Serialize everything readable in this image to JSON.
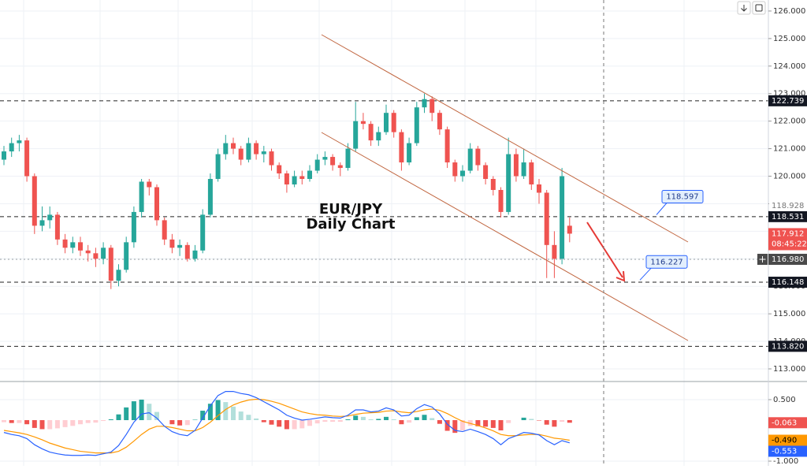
{
  "chart_data": [
    {
      "type": "candlestick",
      "title": "EUR/JPY",
      "subtitle": "Daily Chart",
      "open": [
        120.6,
        120.9,
        121.2,
        121.3,
        120.0,
        118.2,
        118.4,
        118.6,
        117.7,
        117.4,
        117.6,
        117.3,
        117.2,
        117.0,
        117.4,
        116.2,
        116.6,
        117.6,
        118.7,
        119.8,
        119.6,
        118.4,
        117.7,
        117.4,
        117.5,
        117.0,
        117.3,
        118.6,
        119.9,
        120.8,
        121.2,
        121.0,
        120.6,
        121.2,
        120.8,
        120.9,
        120.4,
        120.1,
        119.7,
        120.0,
        119.9,
        120.2,
        120.6,
        120.7,
        120.4,
        120.3,
        121.0,
        122.0,
        121.9,
        121.3,
        121.6,
        122.3,
        121.6,
        120.5,
        121.2,
        122.5,
        122.8,
        122.3,
        121.7,
        120.5,
        120.0,
        120.2,
        121.0,
        120.4,
        119.9,
        119.5,
        118.7,
        120.8,
        120.0,
        120.5,
        119.7,
        119.4,
        117.5,
        117.0,
        118.2
      ],
      "high": [
        121.1,
        121.4,
        121.5,
        121.4,
        120.1,
        118.9,
        118.9,
        118.7,
        117.9,
        117.8,
        117.8,
        117.5,
        117.4,
        117.6,
        117.5,
        116.8,
        117.8,
        118.9,
        119.9,
        119.9,
        119.7,
        118.5,
        117.9,
        117.7,
        117.6,
        117.5,
        118.8,
        120.1,
        121.0,
        121.5,
        121.4,
        121.1,
        121.4,
        121.3,
        121.1,
        121.0,
        120.5,
        120.2,
        120.2,
        120.2,
        120.4,
        120.8,
        120.9,
        120.8,
        120.5,
        121.2,
        122.7,
        122.3,
        122.0,
        121.8,
        122.6,
        122.4,
        121.7,
        121.4,
        122.7,
        123.0,
        122.9,
        122.4,
        121.8,
        120.6,
        120.4,
        121.2,
        121.1,
        120.5,
        120.0,
        119.6,
        121.4,
        121.0,
        121.0,
        120.6,
        119.9,
        119.5,
        118.0,
        120.3,
        118.5
      ],
      "low": [
        120.4,
        120.7,
        120.9,
        119.8,
        117.9,
        118.0,
        118.1,
        117.5,
        117.2,
        117.2,
        117.1,
        116.9,
        116.7,
        116.8,
        115.9,
        116.0,
        116.5,
        117.4,
        118.5,
        119.3,
        118.2,
        117.5,
        117.2,
        117.1,
        116.9,
        116.9,
        117.2,
        118.5,
        119.8,
        120.6,
        120.8,
        120.4,
        120.5,
        120.6,
        120.5,
        120.2,
        119.9,
        119.4,
        119.6,
        119.7,
        119.8,
        120.1,
        120.4,
        120.2,
        120.0,
        120.2,
        120.9,
        121.7,
        121.1,
        121.1,
        121.5,
        121.4,
        120.2,
        120.4,
        121.1,
        122.3,
        122.0,
        121.5,
        120.3,
        119.8,
        119.8,
        120.1,
        120.2,
        119.7,
        119.3,
        118.5,
        118.6,
        119.8,
        119.9,
        119.5,
        119.0,
        116.3,
        116.3,
        116.8,
        117.6
      ],
      "close": [
        120.9,
        121.2,
        121.3,
        120.0,
        118.2,
        118.4,
        118.6,
        117.7,
        117.4,
        117.6,
        117.3,
        117.2,
        117.0,
        117.4,
        116.2,
        116.6,
        117.6,
        118.7,
        119.8,
        119.6,
        118.4,
        117.7,
        117.4,
        117.5,
        117.0,
        117.3,
        118.6,
        119.9,
        120.8,
        121.2,
        121.0,
        120.6,
        121.2,
        120.8,
        120.9,
        120.4,
        120.1,
        119.7,
        120.0,
        119.9,
        120.2,
        120.6,
        120.7,
        120.4,
        120.3,
        121.0,
        122.0,
        121.9,
        121.3,
        121.6,
        122.3,
        121.6,
        120.5,
        121.2,
        122.5,
        122.8,
        122.3,
        121.7,
        120.5,
        120.0,
        120.2,
        121.0,
        120.4,
        119.9,
        119.5,
        118.7,
        120.8,
        120.0,
        120.5,
        119.7,
        119.4,
        117.5,
        117.0,
        120.0,
        117.912
      ],
      "last_label": "117.912",
      "countdown": "08:45:22",
      "up_color": "#26a69a",
      "down_color": "#ef5350",
      "ylim": [
        112.57,
        126.4
      ],
      "yticks": [
        {
          "value": 113,
          "label": "113.000"
        },
        {
          "value": 114,
          "label": "114.000"
        },
        {
          "value": 115,
          "label": "115.000"
        },
        {
          "value": 116,
          "label": "116.000"
        },
        {
          "value": 117,
          "label": "117.000"
        },
        {
          "value": 118,
          "label": "118.000"
        },
        {
          "value": 119,
          "label": "119.000"
        },
        {
          "value": 120,
          "label": "120.000"
        },
        {
          "value": 121,
          "label": "121.000"
        },
        {
          "value": 122,
          "label": "122.000"
        },
        {
          "value": 123,
          "label": "123.000"
        },
        {
          "value": 124,
          "label": "124.000"
        },
        {
          "value": 125,
          "label": "125.000"
        },
        {
          "value": 126,
          "label": "126.000"
        }
      ],
      "grid": true,
      "levels": [
        {
          "value": 122.739,
          "label": "122.739"
        },
        {
          "value": 118.531,
          "label": "118.531"
        },
        {
          "value": 116.148,
          "label": "116.148"
        },
        {
          "value": 113.82,
          "label": "113.820"
        }
      ],
      "crosshair": {
        "value": 116.98,
        "label": "116.980"
      },
      "alert": {
        "value": 118.928,
        "label": "118.928"
      },
      "callouts": [
        {
          "value": 118.597,
          "label": "118.597"
        },
        {
          "value": 116.227,
          "label": "116.227"
        }
      ]
    },
    {
      "type": "macd",
      "macd": {
        "color": "#2962ff",
        "last_label": "-0.553",
        "values": [
          -0.3,
          -0.35,
          -0.38,
          -0.45,
          -0.6,
          -0.7,
          -0.78,
          -0.82,
          -0.85,
          -0.86,
          -0.86,
          -0.85,
          -0.86,
          -0.82,
          -0.78,
          -0.62,
          -0.35,
          -0.05,
          0.15,
          0.18,
          0.05,
          -0.15,
          -0.28,
          -0.35,
          -0.38,
          -0.25,
          0.05,
          0.35,
          0.6,
          0.7,
          0.7,
          0.65,
          0.62,
          0.55,
          0.45,
          0.35,
          0.25,
          0.12,
          0.05,
          0.0,
          0.02,
          0.05,
          0.08,
          0.06,
          0.05,
          0.12,
          0.25,
          0.25,
          0.2,
          0.22,
          0.3,
          0.25,
          0.1,
          0.12,
          0.28,
          0.38,
          0.32,
          0.15,
          -0.1,
          -0.25,
          -0.28,
          -0.22,
          -0.28,
          -0.35,
          -0.45,
          -0.6,
          -0.45,
          -0.38,
          -0.3,
          -0.32,
          -0.36,
          -0.5,
          -0.6,
          -0.5,
          -0.553
        ]
      },
      "signal": {
        "color": "#ff9800",
        "last_label": "-0.490",
        "values": [
          -0.25,
          -0.28,
          -0.31,
          -0.35,
          -0.41,
          -0.48,
          -0.56,
          -0.62,
          -0.68,
          -0.72,
          -0.76,
          -0.78,
          -0.8,
          -0.8,
          -0.8,
          -0.76,
          -0.66,
          -0.51,
          -0.35,
          -0.22,
          -0.15,
          -0.15,
          -0.18,
          -0.22,
          -0.26,
          -0.26,
          -0.18,
          -0.05,
          0.11,
          0.26,
          0.37,
          0.44,
          0.49,
          0.51,
          0.5,
          0.46,
          0.41,
          0.34,
          0.27,
          0.2,
          0.16,
          0.13,
          0.12,
          0.1,
          0.09,
          0.1,
          0.14,
          0.17,
          0.18,
          0.19,
          0.22,
          0.23,
          0.2,
          0.18,
          0.21,
          0.25,
          0.27,
          0.24,
          0.16,
          0.06,
          -0.03,
          -0.08,
          -0.13,
          -0.19,
          -0.26,
          -0.35,
          -0.38,
          -0.38,
          -0.36,
          -0.35,
          -0.35,
          -0.39,
          -0.44,
          -0.46,
          -0.49
        ]
      },
      "histogram": {
        "colors": [
          "#26a69a",
          "#b2dfdb",
          "#ffcdd2",
          "#ef5350"
        ],
        "last_label": "-0.063",
        "values": [
          -0.05,
          -0.07,
          -0.07,
          -0.1,
          -0.19,
          -0.22,
          -0.22,
          -0.2,
          -0.17,
          -0.14,
          -0.1,
          -0.07,
          -0.06,
          -0.02,
          0.02,
          0.14,
          0.31,
          0.46,
          0.5,
          0.4,
          0.2,
          0.0,
          -0.1,
          -0.13,
          -0.12,
          0.01,
          0.23,
          0.4,
          0.49,
          0.44,
          0.33,
          0.21,
          0.13,
          0.04,
          -0.05,
          -0.11,
          -0.16,
          -0.22,
          -0.22,
          -0.2,
          -0.14,
          -0.08,
          -0.04,
          -0.04,
          -0.04,
          0.02,
          0.11,
          0.08,
          0.02,
          0.03,
          0.08,
          0.02,
          -0.1,
          -0.06,
          0.07,
          0.13,
          0.05,
          -0.09,
          -0.26,
          -0.31,
          -0.25,
          -0.14,
          -0.15,
          -0.16,
          -0.19,
          -0.25,
          -0.07,
          0.0,
          0.06,
          0.03,
          -0.01,
          -0.11,
          -0.16,
          -0.04,
          -0.063
        ]
      },
      "ylim": [
        -1.115,
        0.923
      ],
      "yticks": [
        {
          "value": 0.5,
          "label": "0.500"
        },
        {
          "value": -1,
          "label": "-1.000"
        }
      ]
    }
  ]
}
